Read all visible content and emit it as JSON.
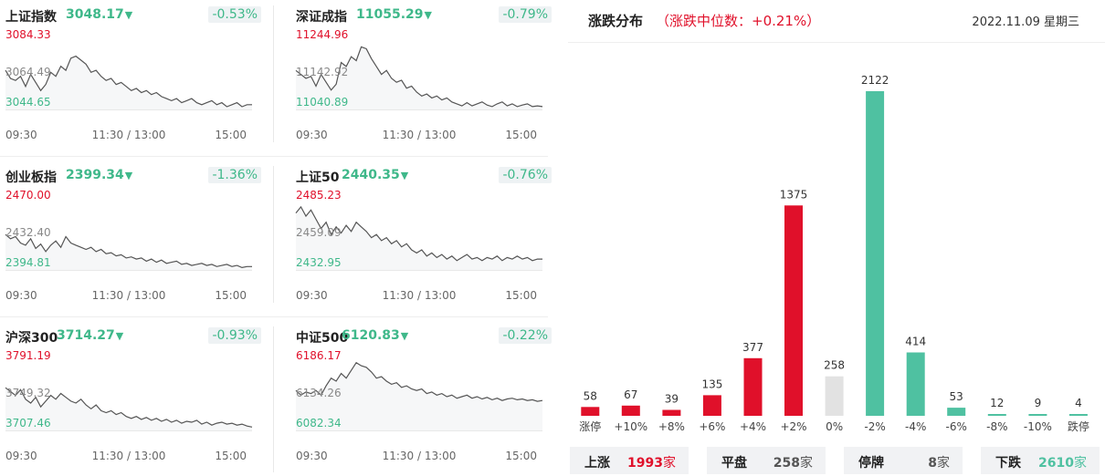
{
  "indices": [
    {
      "name": "上证指数",
      "value": "3048.17",
      "change": "-0.53%",
      "high": "3084.33",
      "mid": "3064.49",
      "low": "3044.65",
      "time_start": "09:30",
      "time_mid": "11:30 / 13:00",
      "time_end": "15:00",
      "series": [
        3064,
        3060,
        3059,
        3061,
        3056,
        3062,
        3058,
        3054,
        3057,
        3063,
        3061,
        3066,
        3064,
        3070,
        3071,
        3069,
        3067,
        3063,
        3064,
        3061,
        3059,
        3060,
        3057,
        3058,
        3056,
        3054,
        3055,
        3053,
        3054,
        3052,
        3053,
        3051,
        3050,
        3049,
        3050,
        3048,
        3049,
        3050,
        3048,
        3047,
        3048,
        3049,
        3047,
        3048,
        3046,
        3047,
        3048,
        3046,
        3047,
        3047
      ]
    },
    {
      "name": "深证成指",
      "value": "11055.29",
      "change": "-0.79%",
      "high": "11244.96",
      "mid": "11142.92",
      "low": "11040.89",
      "time_start": "09:30",
      "time_mid": "11:30 / 13:00",
      "time_end": "15:00",
      "series": [
        11140,
        11130,
        11120,
        11125,
        11100,
        11130,
        11110,
        11090,
        11105,
        11160,
        11150,
        11175,
        11165,
        11200,
        11195,
        11170,
        11150,
        11130,
        11140,
        11120,
        11110,
        11115,
        11095,
        11100,
        11085,
        11075,
        11080,
        11070,
        11075,
        11065,
        11070,
        11060,
        11055,
        11050,
        11058,
        11050,
        11055,
        11060,
        11052,
        11048,
        11055,
        11060,
        11050,
        11055,
        11048,
        11052,
        11055,
        11048,
        11050,
        11048
      ]
    },
    {
      "name": "创业板指",
      "value": "2399.34",
      "change": "-1.36%",
      "high": "2470.00",
      "mid": "2432.40",
      "low": "2394.81",
      "time_start": "09:30",
      "time_mid": "11:30 / 13:00",
      "time_end": "15:00",
      "series": [
        2428,
        2424,
        2426,
        2420,
        2418,
        2424,
        2415,
        2419,
        2412,
        2418,
        2422,
        2416,
        2426,
        2420,
        2418,
        2416,
        2414,
        2416,
        2412,
        2414,
        2410,
        2411,
        2408,
        2409,
        2406,
        2407,
        2405,
        2406,
        2403,
        2405,
        2402,
        2404,
        2401,
        2402,
        2403,
        2400,
        2401,
        2399,
        2400,
        2401,
        2399,
        2400,
        2398,
        2399,
        2400,
        2398,
        2399,
        2397,
        2398,
        2398
      ]
    },
    {
      "name": "上证50",
      "value": "2440.35",
      "change": "-0.76%",
      "high": "2485.23",
      "mid": "2459.09",
      "low": "2432.95",
      "time_start": "09:30",
      "time_mid": "11:30 / 13:00",
      "time_end": "15:00",
      "series": [
        2470,
        2474,
        2468,
        2472,
        2466,
        2460,
        2464,
        2456,
        2461,
        2457,
        2462,
        2458,
        2464,
        2461,
        2458,
        2454,
        2456,
        2452,
        2454,
        2450,
        2452,
        2448,
        2450,
        2446,
        2444,
        2446,
        2442,
        2444,
        2441,
        2443,
        2440,
        2442,
        2439,
        2441,
        2443,
        2440,
        2441,
        2439,
        2441,
        2440,
        2442,
        2439,
        2441,
        2440,
        2442,
        2440,
        2441,
        2439,
        2440,
        2440
      ]
    },
    {
      "name": "沪深300",
      "value": "3714.27",
      "change": "-0.93%",
      "high": "3791.19",
      "mid": "3749.32",
      "low": "3707.46",
      "time_start": "09:30",
      "time_mid": "11:30 / 13:00",
      "time_end": "15:00",
      "series": [
        3752,
        3748,
        3744,
        3750,
        3740,
        3736,
        3742,
        3732,
        3738,
        3744,
        3740,
        3746,
        3742,
        3738,
        3736,
        3740,
        3734,
        3730,
        3734,
        3728,
        3726,
        3728,
        3724,
        3726,
        3722,
        3720,
        3722,
        3719,
        3721,
        3718,
        3720,
        3717,
        3719,
        3716,
        3718,
        3715,
        3717,
        3716,
        3718,
        3714,
        3716,
        3713,
        3715,
        3716,
        3714,
        3715,
        3713,
        3714,
        3712,
        3711
      ]
    },
    {
      "name": "中证500",
      "value": "6120.83",
      "change": "-0.22%",
      "high": "6186.17",
      "mid": "6134.26",
      "low": "6082.34",
      "time_start": "09:30",
      "time_mid": "11:30 / 13:00",
      "time_end": "15:00",
      "series": [
        6134,
        6128,
        6132,
        6130,
        6134,
        6128,
        6140,
        6150,
        6146,
        6156,
        6150,
        6160,
        6170,
        6166,
        6164,
        6158,
        6150,
        6152,
        6146,
        6142,
        6144,
        6138,
        6140,
        6136,
        6134,
        6136,
        6130,
        6132,
        6128,
        6130,
        6126,
        6128,
        6124,
        6126,
        6128,
        6124,
        6126,
        6123,
        6125,
        6122,
        6124,
        6121,
        6123,
        6124,
        6122,
        6123,
        6121,
        6122,
        6120,
        6121
      ]
    }
  ],
  "colors": {
    "up": "#e0102a",
    "down": "#4fc1a1",
    "flat": "#e2e2e2",
    "line": "#555555",
    "grid": "#e8e8e8",
    "pos_text": "#e0102a",
    "neg_text": "#3fb88a"
  },
  "distribution": {
    "title": "涨跌分布",
    "subtitle": "（涨跌中位数：+0.21%）",
    "date": "2022.11.09 星期三"
  },
  "chart_data": {
    "type": "bar",
    "title": "涨跌分布",
    "categories": [
      "涨停",
      "+10%",
      "+8%",
      "+6%",
      "+4%",
      "+2%",
      "0%",
      "-2%",
      "-4%",
      "-6%",
      "-8%",
      "-10%",
      "跌停"
    ],
    "values": [
      58,
      67,
      39,
      135,
      377,
      1375,
      258,
      2122,
      414,
      53,
      12,
      9,
      4
    ],
    "bar_colors": [
      "up",
      "up",
      "up",
      "up",
      "up",
      "up",
      "flat",
      "down",
      "down",
      "down",
      "down",
      "down",
      "down"
    ]
  },
  "summary": [
    {
      "label": "上涨",
      "value": "1993",
      "unit": "家",
      "color": "up"
    },
    {
      "label": "平盘",
      "value": "258",
      "unit": "家",
      "color": "plain"
    },
    {
      "label": "停牌",
      "value": "8",
      "unit": "家",
      "color": "plain"
    },
    {
      "label": "下跌",
      "value": "2610",
      "unit": "家",
      "color": "down"
    }
  ]
}
